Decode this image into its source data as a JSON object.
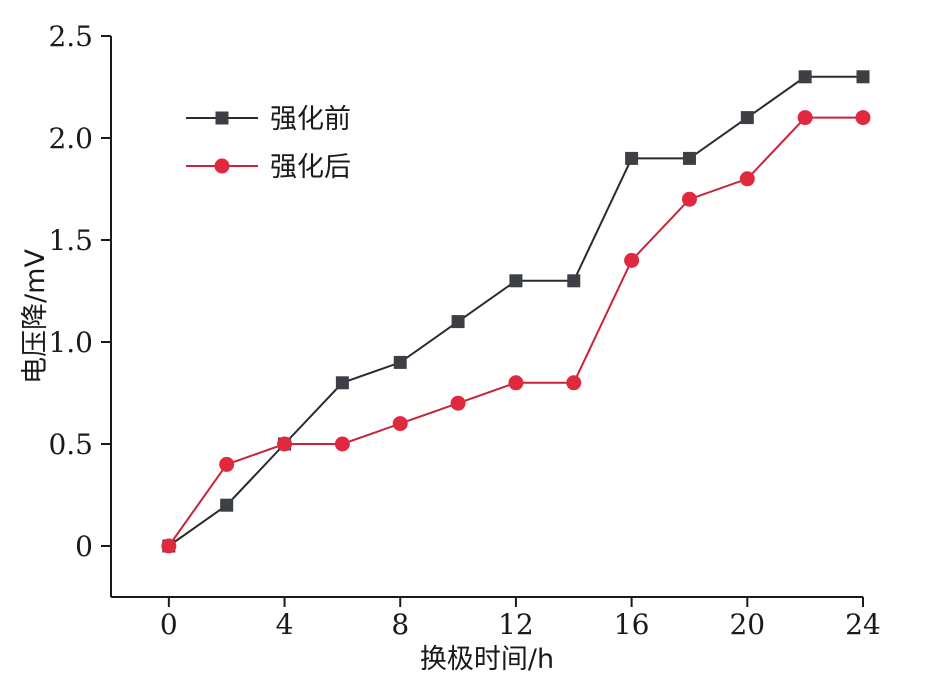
{
  "chart_data": {
    "type": "line",
    "title": "",
    "xlabel": "换极时间/h",
    "ylabel": "电压降/mV",
    "xlim": [
      -2,
      24
    ],
    "ylim": [
      -0.25,
      2.5
    ],
    "xticks": [
      0,
      4,
      8,
      12,
      16,
      20,
      24
    ],
    "xtick_labels": [
      "0",
      "4",
      "8",
      "12",
      "16",
      "20",
      "24"
    ],
    "yticks": [
      0,
      0.5,
      1.0,
      1.5,
      2.0,
      2.5
    ],
    "ytick_labels": [
      "0",
      "0.5",
      "1.0",
      "1.5",
      "2.0",
      "2.5"
    ],
    "grid": false,
    "legend_position": "top-left",
    "x": [
      0,
      2,
      4,
      6,
      8,
      10,
      12,
      14,
      16,
      18,
      20,
      22,
      24
    ],
    "series": [
      {
        "name": "强化前",
        "marker": "square",
        "line_color": "#2b2b2b",
        "marker_color": "#3c3f44",
        "values": [
          0,
          0.2,
          0.5,
          0.8,
          0.9,
          1.1,
          1.3,
          1.3,
          1.9,
          1.9,
          2.1,
          2.3,
          2.3
        ]
      },
      {
        "name": "强化后",
        "marker": "circle",
        "line_color": "#c8243a",
        "marker_color": "#e0293f",
        "values": [
          0,
          0.4,
          0.5,
          0.5,
          0.6,
          0.7,
          0.8,
          0.8,
          1.4,
          1.7,
          1.8,
          2.1,
          2.1
        ]
      }
    ]
  }
}
